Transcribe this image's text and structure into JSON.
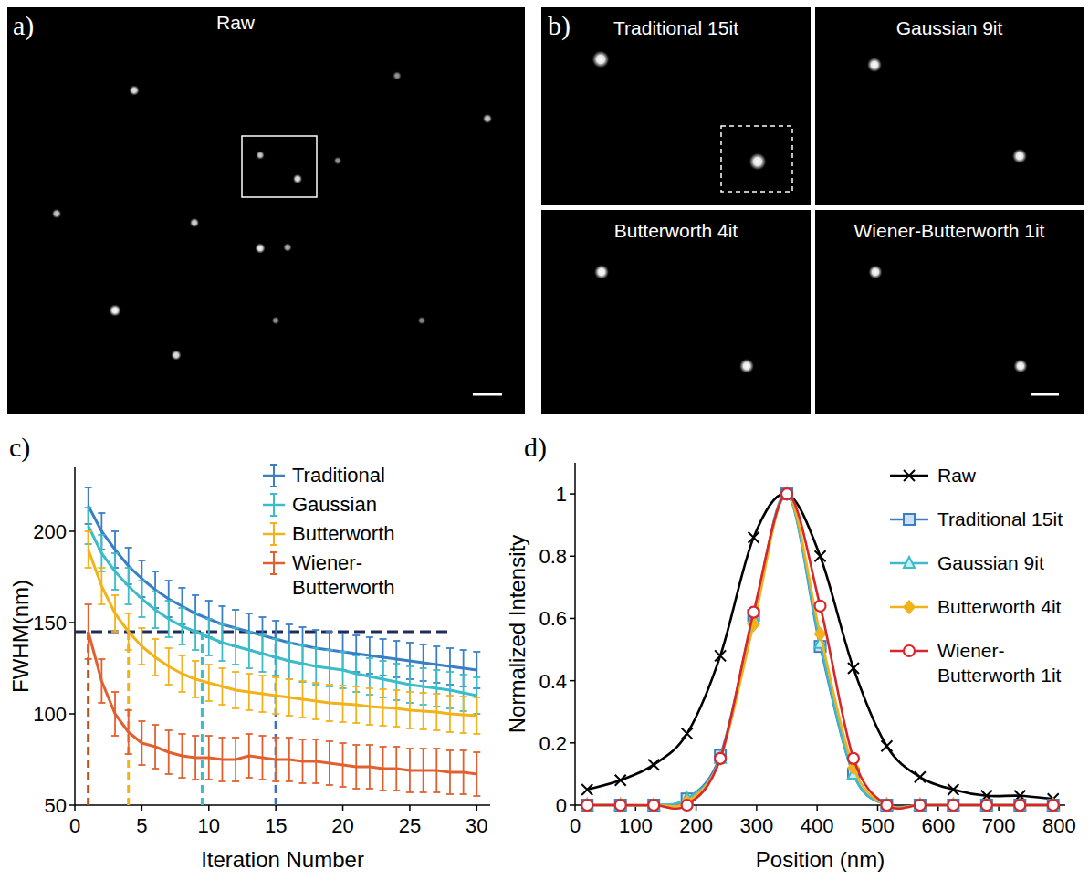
{
  "images": {
    "a": {
      "letter": "a)",
      "title": "Raw"
    },
    "b": {
      "letter": "b)",
      "tiles": [
        "Traditional 15it",
        "Gaussian 9it",
        "Butterworth 4it",
        "Wiener-Butterworth 1it"
      ]
    }
  },
  "chart_data": [
    {
      "type": "line",
      "letter": "c)",
      "x_label": "Iteration Number",
      "y_label": "FWHM(nm)",
      "x": [
        1,
        2,
        3,
        4,
        5,
        6,
        7,
        8,
        9,
        10,
        11,
        12,
        13,
        14,
        15,
        16,
        17,
        18,
        19,
        20,
        21,
        22,
        23,
        24,
        25,
        26,
        27,
        28,
        29,
        30
      ],
      "xlim": [
        0,
        31
      ],
      "ylim": [
        50,
        235
      ],
      "xticks": [
        0,
        5,
        10,
        15,
        20,
        25,
        30
      ],
      "yticks": [
        50,
        100,
        150,
        200
      ],
      "legend": "upper right",
      "series": [
        {
          "name": "Traditional",
          "color": "#3a7fc6",
          "values": [
            214,
            200,
            190,
            181,
            174,
            168,
            163,
            159,
            155,
            152,
            149,
            147,
            145,
            143,
            141,
            139,
            137.5,
            136,
            135,
            134,
            133,
            132,
            131,
            130,
            129,
            128,
            127,
            126,
            125,
            124
          ],
          "errors": [
            10,
            10,
            10,
            10,
            10,
            10,
            10,
            10,
            10,
            10,
            10,
            10,
            10,
            10,
            10,
            10,
            10,
            10,
            10,
            10,
            10,
            10,
            10,
            10,
            10,
            10,
            10,
            10,
            10,
            10
          ]
        },
        {
          "name": "Gaussian",
          "color": "#3cbcc8",
          "values": [
            203,
            188,
            178,
            170,
            163,
            157,
            152,
            148,
            145,
            142,
            139,
            137,
            135,
            133,
            131,
            129,
            127.5,
            126,
            125,
            124,
            122,
            120.5,
            119,
            117.5,
            116,
            115,
            114,
            113,
            111.5,
            110
          ],
          "errors": [
            10,
            10,
            10,
            10,
            10,
            10,
            10,
            10,
            10,
            10,
            10,
            10,
            10,
            10,
            10,
            10,
            10,
            10,
            10,
            10,
            10,
            10,
            10,
            10,
            10,
            10,
            10,
            10,
            10,
            10
          ]
        },
        {
          "name": "Butterworth",
          "color": "#f2b21c",
          "values": [
            190,
            170,
            155,
            145,
            137,
            131,
            126,
            122,
            119,
            117,
            115,
            113,
            112,
            111,
            110,
            109,
            108,
            107,
            106,
            105.5,
            105,
            104,
            103.5,
            103,
            102,
            101.5,
            101,
            100,
            99.5,
            99
          ],
          "errors": [
            10,
            10,
            10,
            10,
            10,
            10,
            10,
            10,
            10,
            10,
            10,
            10,
            10,
            10,
            10,
            10,
            10,
            10,
            10,
            10,
            10,
            10,
            10,
            10,
            10,
            10,
            10,
            10,
            10,
            10
          ]
        },
        {
          "name": "Wiener-Butterworth",
          "color": "#e2602f",
          "values": [
            145,
            118,
            100,
            90,
            84,
            82,
            79,
            77,
            76,
            76,
            75,
            75,
            77,
            76,
            75,
            75,
            74,
            74,
            73,
            72,
            71,
            71,
            70,
            70,
            69,
            69,
            69,
            68,
            68,
            67
          ],
          "errors": [
            15,
            12,
            12,
            12,
            12,
            12,
            12,
            12,
            12,
            12,
            12,
            12,
            12,
            12,
            12,
            12,
            12,
            12,
            12,
            12,
            12,
            12,
            12,
            12,
            12,
            12,
            12,
            12,
            12,
            12
          ]
        }
      ],
      "threshold": {
        "value": 145,
        "x_end": 28,
        "color": "#1f2d5a"
      },
      "crossings": [
        {
          "x": 1,
          "color": "#b5541c"
        },
        {
          "x": 4,
          "color": "#f2b21c"
        },
        {
          "x": 9.5,
          "color": "#3cbcc8"
        },
        {
          "x": 15,
          "color": "#3a6fc0"
        }
      ]
    },
    {
      "type": "line",
      "letter": "d)",
      "x_label": "Position (nm)",
      "y_label": "Normalized Intensity",
      "x": [
        20,
        75,
        130,
        185,
        240,
        295,
        350,
        405,
        460,
        515,
        570,
        625,
        680,
        735,
        790
      ],
      "xlim": [
        0,
        810
      ],
      "ylim": [
        0,
        1.1
      ],
      "xticks": [
        0,
        100,
        200,
        300,
        400,
        500,
        600,
        700,
        800
      ],
      "yticks": [
        0,
        0.2,
        0.4,
        0.6,
        0.8,
        1
      ],
      "legend": "upper right",
      "series": [
        {
          "name": "Raw",
          "color": "#000000",
          "marker": "x",
          "values": [
            0.05,
            0.08,
            0.13,
            0.23,
            0.48,
            0.86,
            1.0,
            0.8,
            0.44,
            0.19,
            0.09,
            0.05,
            0.03,
            0.03,
            0.02
          ]
        },
        {
          "name": "Traditional 15it",
          "color": "#3a7fc6",
          "marker": "square",
          "values": [
            0,
            0,
            0,
            0.02,
            0.16,
            0.61,
            1.0,
            0.51,
            0.1,
            0,
            0,
            0,
            0,
            0,
            0
          ]
        },
        {
          "name": "Gaussian 9it",
          "color": "#3cbcc8",
          "marker": "triangle",
          "values": [
            0,
            0,
            0,
            0.02,
            0.15,
            0.6,
            1.0,
            0.52,
            0.1,
            0,
            0,
            0,
            0,
            0,
            0
          ]
        },
        {
          "name": "Butterworth 4it",
          "color": "#f2b21c",
          "marker": "diamond",
          "values": [
            0,
            0,
            0,
            0.01,
            0.15,
            0.58,
            1.0,
            0.55,
            0.12,
            0,
            0,
            0,
            0,
            0,
            0
          ]
        },
        {
          "name": "Wiener-Butterworth 1it",
          "color": "#d9262b",
          "marker": "circle",
          "values": [
            0,
            0,
            0,
            0,
            0.15,
            0.62,
            1.0,
            0.64,
            0.15,
            0,
            0,
            0,
            0,
            0,
            0
          ]
        }
      ]
    }
  ]
}
